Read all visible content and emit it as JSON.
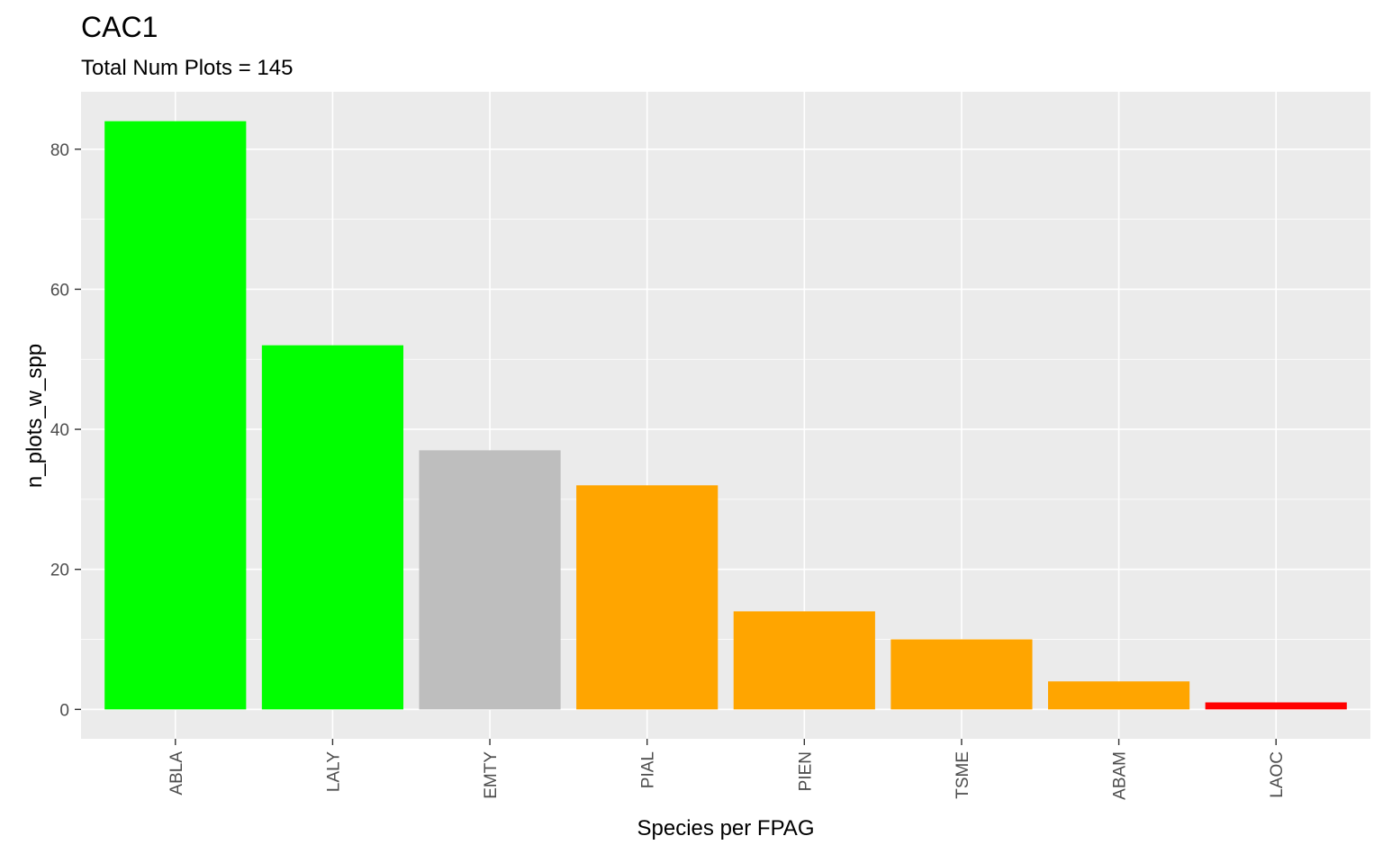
{
  "chart_data": {
    "type": "bar",
    "title": "CAC1",
    "subtitle": "Total Num Plots = 145",
    "xlabel": "Species per FPAG",
    "ylabel": "n_plots_w_spp",
    "categories": [
      "ABLA",
      "LALY",
      "EMTY",
      "PIAL",
      "PIEN",
      "TSME",
      "ABAM",
      "LAOC"
    ],
    "values": [
      84,
      52,
      37,
      32,
      14,
      10,
      4,
      1
    ],
    "colors": [
      "#00ff00",
      "#00ff00",
      "#bebebe",
      "#ffa500",
      "#ffa500",
      "#ffa500",
      "#ffa500",
      "#ff0000"
    ],
    "ylim": [
      -4.2,
      88.2
    ],
    "yticks": [
      0,
      20,
      40,
      60,
      80
    ],
    "yticks_minor": [
      10,
      30,
      50,
      70
    ],
    "grid": true,
    "panel_background": "#ebebeb",
    "grid_color": "#ffffff",
    "tick_color": "#333333"
  }
}
